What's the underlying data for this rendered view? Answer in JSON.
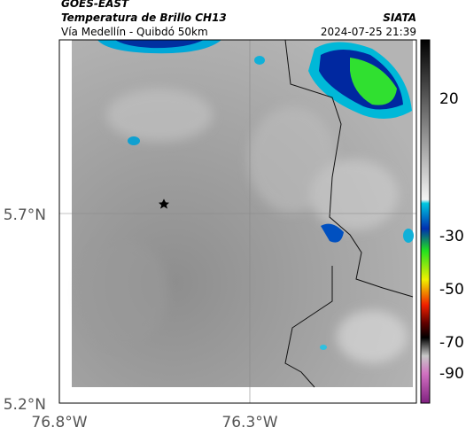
{
  "header": {
    "title": "GOES-EAST",
    "subtitle": "Temperatura de Brillo CH13",
    "source": "SIATA",
    "route": "Vía Medellín - Quibdó 50km",
    "datetime": "2024-07-25 21:39"
  },
  "map": {
    "lat_labels": [
      "5.7°N",
      "5.2°N"
    ],
    "lon_labels": [
      "76.8°W",
      "76.3°W"
    ]
  },
  "colorbar": {
    "ticks": [
      "20",
      "-30",
      "-50",
      "-70",
      "-90"
    ]
  }
}
